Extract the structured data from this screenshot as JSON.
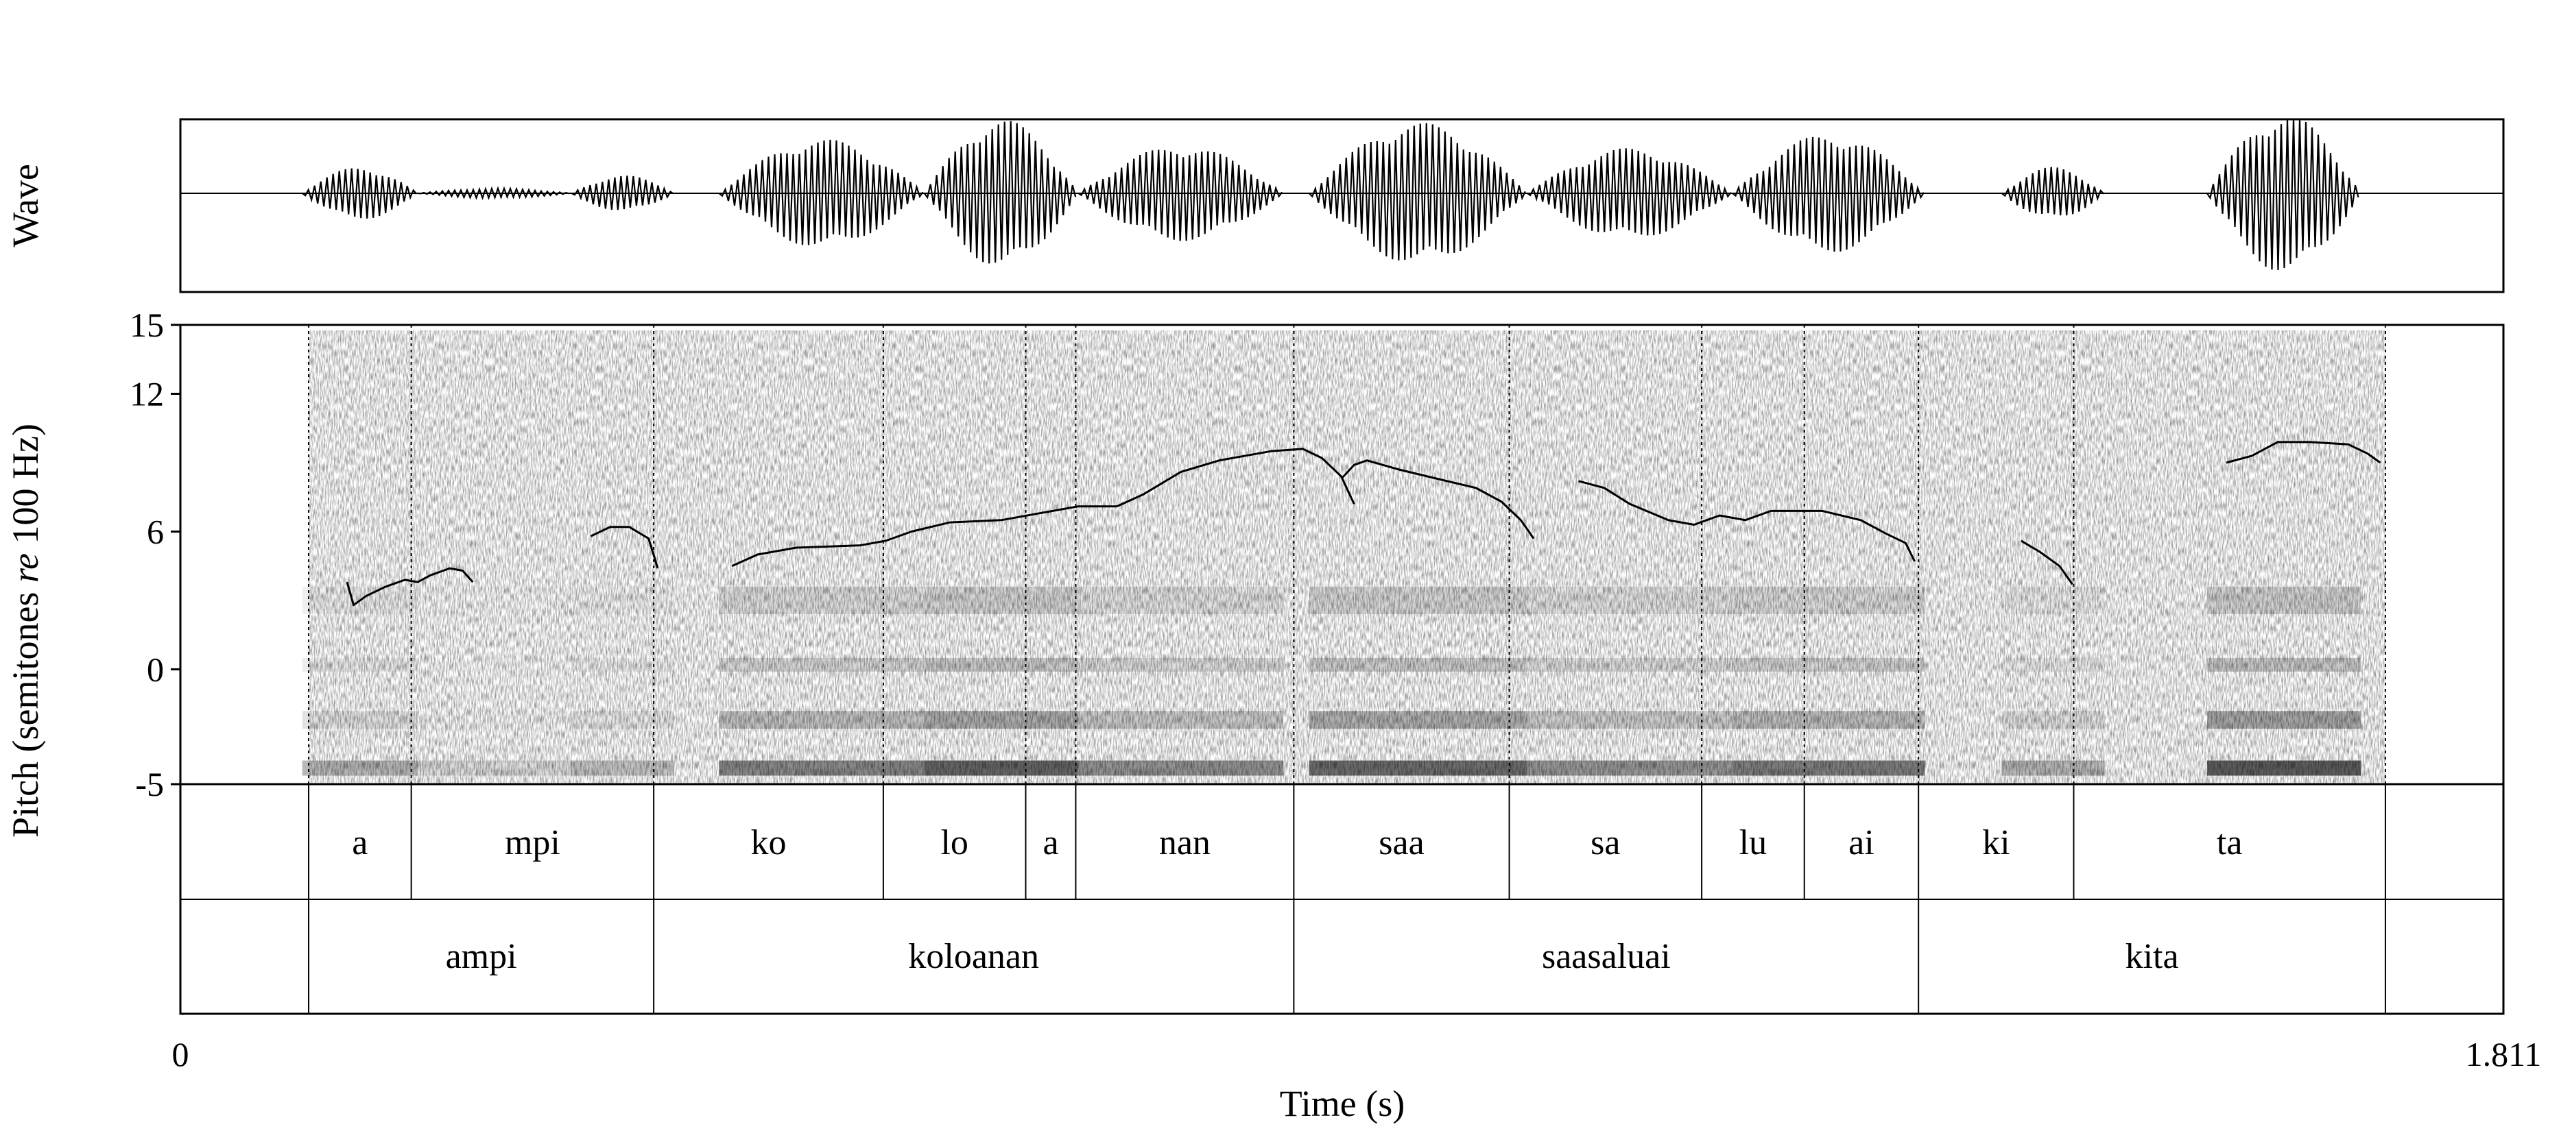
{
  "chart_data": {
    "type": "line",
    "wave_panel": {
      "ylabel": "Wave",
      "segments": [
        {
          "start": 0.095,
          "end": 0.185,
          "amp": 0.32
        },
        {
          "start": 0.185,
          "end": 0.305,
          "amp": 0.06
        },
        {
          "start": 0.305,
          "end": 0.385,
          "amp": 0.22
        },
        {
          "start": 0.42,
          "end": 0.58,
          "amp": 0.66
        },
        {
          "start": 0.58,
          "end": 0.7,
          "amp": 0.9
        },
        {
          "start": 0.7,
          "end": 0.86,
          "amp": 0.58
        },
        {
          "start": 0.88,
          "end": 1.05,
          "amp": 0.86
        },
        {
          "start": 1.05,
          "end": 1.21,
          "amp": 0.55
        },
        {
          "start": 1.21,
          "end": 1.36,
          "amp": 0.72
        },
        {
          "start": 1.42,
          "end": 1.5,
          "amp": 0.32
        },
        {
          "start": 1.58,
          "end": 1.7,
          "amp": 0.96
        }
      ]
    },
    "pitch_panel": {
      "ylabel_pre": "Pitch (semitones ",
      "ylabel_italic": "re",
      "ylabel_post": " 100 Hz)",
      "ylim": [
        -5,
        15
      ],
      "yticks": [
        "15",
        "12",
        "6",
        "0",
        "-5"
      ],
      "ytick_values": [
        15,
        12,
        6,
        0,
        -5
      ],
      "pitch_contours": [
        [
          [
            0.13,
            3.8
          ],
          [
            0.135,
            2.8
          ],
          [
            0.145,
            3.2
          ],
          [
            0.16,
            3.6
          ],
          [
            0.175,
            3.9
          ],
          [
            0.185,
            3.8
          ],
          [
            0.195,
            4.1
          ],
          [
            0.21,
            4.4
          ],
          [
            0.22,
            4.3
          ],
          [
            0.228,
            3.8
          ]
        ],
        [
          [
            0.32,
            5.8
          ],
          [
            0.335,
            6.2
          ],
          [
            0.35,
            6.2
          ],
          [
            0.365,
            5.7
          ],
          [
            0.37,
            4.8
          ],
          [
            0.372,
            4.4
          ]
        ],
        [
          [
            0.43,
            4.5
          ],
          [
            0.45,
            5.0
          ],
          [
            0.48,
            5.3
          ],
          [
            0.53,
            5.4
          ],
          [
            0.55,
            5.6
          ],
          [
            0.57,
            6.0
          ],
          [
            0.6,
            6.4
          ],
          [
            0.64,
            6.5
          ],
          [
            0.67,
            6.8
          ],
          [
            0.7,
            7.1
          ],
          [
            0.73,
            7.1
          ],
          [
            0.75,
            7.6
          ],
          [
            0.78,
            8.6
          ],
          [
            0.81,
            9.1
          ],
          [
            0.85,
            9.5
          ],
          [
            0.875,
            9.6
          ],
          [
            0.89,
            9.2
          ],
          [
            0.905,
            8.4
          ],
          [
            0.915,
            7.2
          ]
        ],
        [
          [
            0.905,
            8.3
          ],
          [
            0.915,
            8.9
          ],
          [
            0.925,
            9.1
          ],
          [
            0.95,
            8.7
          ],
          [
            0.98,
            8.3
          ],
          [
            1.01,
            7.9
          ],
          [
            1.03,
            7.3
          ],
          [
            1.045,
            6.5
          ],
          [
            1.055,
            5.7
          ]
        ],
        [
          [
            1.09,
            8.2
          ],
          [
            1.11,
            7.9
          ],
          [
            1.13,
            7.2
          ],
          [
            1.16,
            6.5
          ],
          [
            1.18,
            6.3
          ],
          [
            1.2,
            6.7
          ],
          [
            1.22,
            6.5
          ],
          [
            1.24,
            6.9
          ],
          [
            1.28,
            6.9
          ],
          [
            1.31,
            6.5
          ],
          [
            1.33,
            5.9
          ],
          [
            1.345,
            5.5
          ],
          [
            1.352,
            4.7
          ]
        ],
        [
          [
            1.435,
            5.6
          ],
          [
            1.45,
            5.1
          ],
          [
            1.465,
            4.5
          ],
          [
            1.475,
            3.7
          ]
        ],
        [
          [
            1.595,
            9.0
          ],
          [
            1.615,
            9.3
          ],
          [
            1.635,
            9.9
          ],
          [
            1.66,
            9.9
          ],
          [
            1.69,
            9.8
          ],
          [
            1.705,
            9.4
          ],
          [
            1.715,
            9.0
          ]
        ]
      ]
    },
    "boundaries": [
      0.1,
      0.18,
      0.369,
      0.548,
      0.659,
      0.698,
      0.868,
      1.036,
      1.186,
      1.266,
      1.355,
      1.476,
      1.719
    ],
    "syllable_tier": [
      {
        "label": "a",
        "start": 0.1,
        "end": 0.18
      },
      {
        "label": "mpi",
        "start": 0.18,
        "end": 0.369
      },
      {
        "label": "ko",
        "start": 0.369,
        "end": 0.548
      },
      {
        "label": "lo",
        "start": 0.548,
        "end": 0.659
      },
      {
        "label": "a",
        "start": 0.659,
        "end": 0.698
      },
      {
        "label": "nan",
        "start": 0.698,
        "end": 0.868
      },
      {
        "label": "saa",
        "start": 0.868,
        "end": 1.036
      },
      {
        "label": "sa",
        "start": 1.036,
        "end": 1.186
      },
      {
        "label": "lu",
        "start": 1.186,
        "end": 1.266
      },
      {
        "label": "ai",
        "start": 1.266,
        "end": 1.355
      },
      {
        "label": "ki",
        "start": 1.355,
        "end": 1.476
      },
      {
        "label": "ta",
        "start": 1.476,
        "end": 1.719
      }
    ],
    "word_tier": [
      {
        "label": "ampi",
        "start": 0.1,
        "end": 0.369
      },
      {
        "label": "koloanan",
        "start": 0.369,
        "end": 0.868
      },
      {
        "label": "saasaluai",
        "start": 0.868,
        "end": 1.355
      },
      {
        "label": "kita",
        "start": 1.355,
        "end": 1.719
      }
    ],
    "xlim": [
      0,
      1.811
    ],
    "xticks": [
      "0",
      "1.811"
    ],
    "xlabel": "Time (s)"
  }
}
